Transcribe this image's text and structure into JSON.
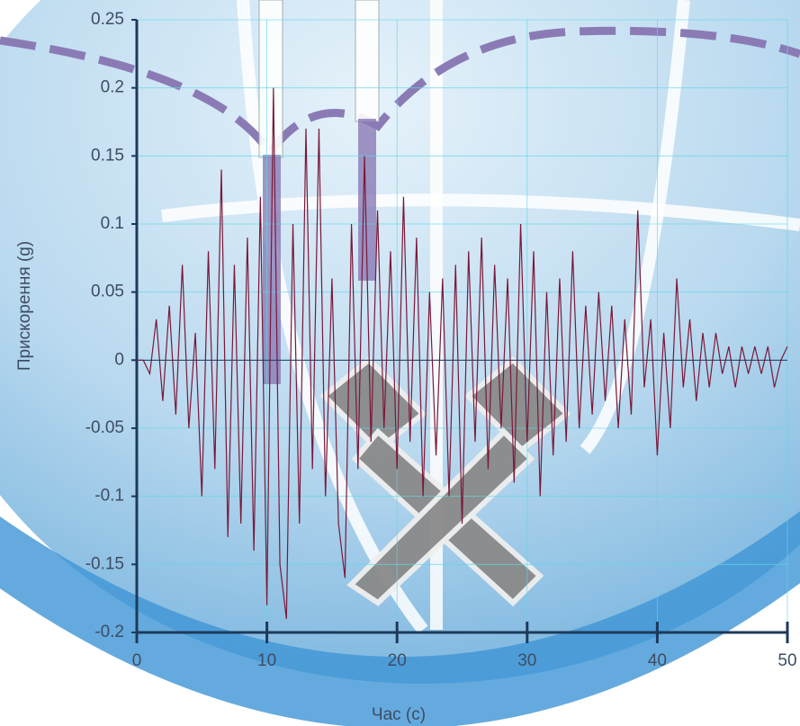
{
  "chart_data": {
    "type": "line",
    "x_label": "Час (с)",
    "y_label": "Прискорення (g)",
    "x": [
      0,
      0.5,
      1,
      1.5,
      2,
      2.5,
      3,
      3.5,
      4,
      4.5,
      5,
      5.5,
      6,
      6.5,
      7,
      7.5,
      8,
      8.5,
      9,
      9.5,
      10,
      10.5,
      11,
      11.5,
      12,
      12.5,
      13,
      13.5,
      14,
      14.5,
      15,
      15.5,
      16,
      16.5,
      17,
      17.5,
      18,
      18.5,
      19,
      19.5,
      20,
      20.5,
      21,
      21.5,
      22,
      22.5,
      23,
      23.5,
      24,
      24.5,
      25,
      25.5,
      26,
      26.5,
      27,
      27.5,
      28,
      28.5,
      29,
      29.5,
      30,
      30.5,
      31,
      31.5,
      32,
      32.5,
      33,
      33.5,
      34,
      34.5,
      35,
      35.5,
      36,
      36.5,
      37,
      37.5,
      38,
      38.5,
      39,
      39.5,
      40,
      40.5,
      41,
      41.5,
      42,
      42.5,
      43,
      43.5,
      44,
      44.5,
      45,
      45.5,
      46,
      46.5,
      47,
      47.5,
      48,
      48.5,
      49,
      49.5,
      50
    ],
    "series": [
      {
        "color": "#7a1838",
        "values": [
          0,
          0,
          -0.01,
          0.03,
          -0.03,
          0.04,
          -0.04,
          0.07,
          -0.05,
          0.02,
          -0.1,
          0.08,
          -0.08,
          0.14,
          -0.13,
          0.07,
          -0.12,
          0.09,
          -0.14,
          0.12,
          -0.18,
          0.2,
          -0.15,
          -0.19,
          0.1,
          -0.12,
          0.17,
          -0.08,
          0.17,
          -0.1,
          0.06,
          -0.12,
          -0.16,
          0.1,
          -0.08,
          0.15,
          -0.06,
          0.11,
          -0.05,
          0.08,
          -0.08,
          0.12,
          -0.06,
          0.09,
          -0.1,
          0.05,
          -0.07,
          0.06,
          -0.1,
          0.07,
          -0.12,
          0.08,
          -0.06,
          0.09,
          -0.08,
          0.07,
          -0.05,
          0.06,
          -0.09,
          0.1,
          -0.06,
          0.08,
          -0.1,
          0.05,
          -0.07,
          0.06,
          -0.06,
          0.08,
          -0.05,
          0.04,
          -0.04,
          0.05,
          -0.03,
          0.04,
          -0.05,
          0.03,
          -0.04,
          0.11,
          -0.02,
          0.03,
          -0.07,
          0.02,
          -0.05,
          0.06,
          -0.02,
          0.03,
          -0.03,
          0.02,
          -0.02,
          0.02,
          -0.01,
          0.01,
          -0.02,
          0.01,
          -0.01,
          0.01,
          -0.01,
          0.01,
          -0.02,
          0,
          0.01
        ]
      }
    ],
    "xlim": [
      0,
      50
    ],
    "ylim": [
      -0.2,
      0.25
    ],
    "xticks": [
      0,
      10,
      20,
      30,
      40,
      50
    ],
    "yticks": [
      -0.2,
      -0.15,
      -0.1,
      -0.05,
      0,
      0.05,
      0.1,
      0.15,
      0.2,
      0.25
    ],
    "grid": true
  }
}
